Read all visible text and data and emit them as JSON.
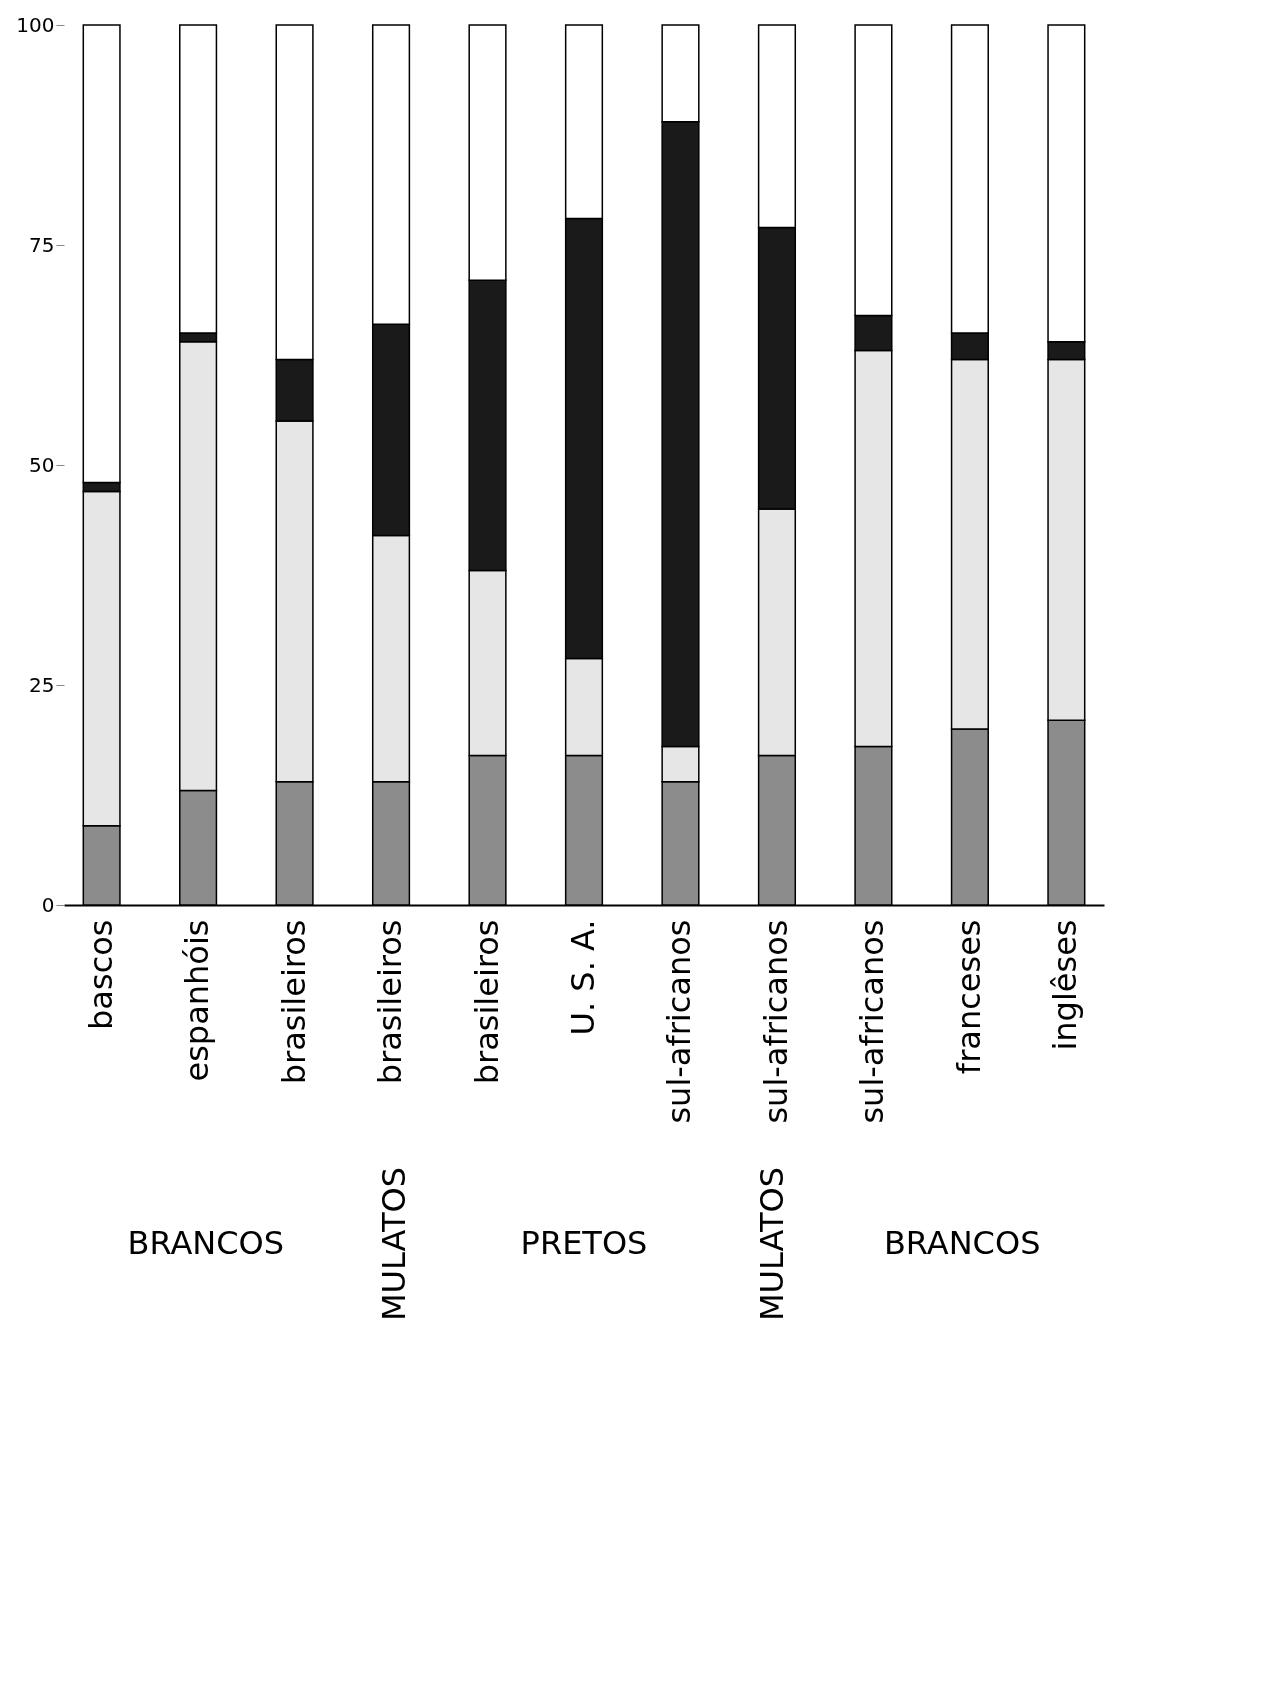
{
  "chart_data": {
    "type": "bar",
    "stacked": true,
    "categories": [
      "bascos",
      "espanhóis",
      "brasileiros",
      "brasileiros",
      "brasileiros",
      "U. S. A.",
      "sul-africanos",
      "sul-africanos",
      "sul-africanos",
      "franceses",
      "inglêses"
    ],
    "series": [
      {
        "color": "#8c8c8c",
        "values": [
          9,
          13,
          14,
          14,
          17,
          17,
          14,
          17,
          18,
          20,
          21
        ]
      },
      {
        "color": "#e6e6e6",
        "values": [
          38,
          51,
          41,
          28,
          21,
          11,
          4,
          28,
          45,
          42,
          41
        ]
      },
      {
        "color": "#1a1a1a",
        "values": [
          1,
          1,
          7,
          24,
          33,
          50,
          71,
          32,
          4,
          3,
          2
        ]
      },
      {
        "color": "#ffffff",
        "values": [
          52,
          35,
          38,
          34,
          29,
          22,
          11,
          23,
          33,
          35,
          36
        ]
      }
    ],
    "ylim": [
      0,
      100
    ],
    "yticks": [
      0,
      25,
      50,
      75,
      100
    ],
    "grid": false,
    "legend": false,
    "annotations": [
      "BRANCOS",
      "MULATOS",
      "PRETOS",
      "MULATOS",
      "BRANCOS"
    ]
  }
}
